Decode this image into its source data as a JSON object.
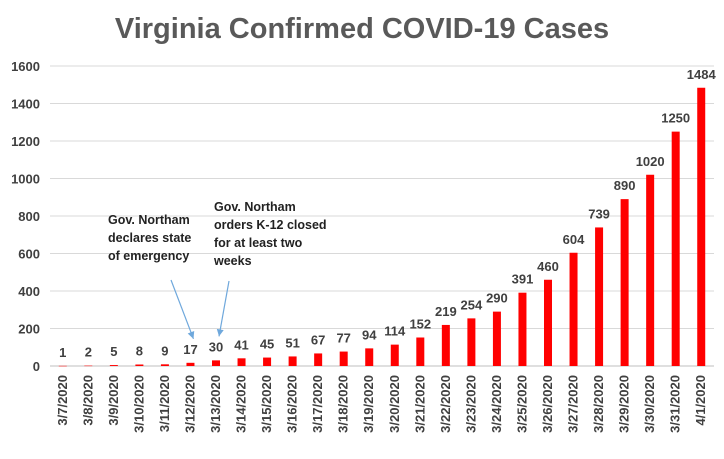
{
  "chart_data": {
    "type": "bar",
    "title": "Virginia Confirmed COVID-19 Cases",
    "xlabel": "",
    "ylabel": "",
    "ylim": [
      0,
      1600
    ],
    "yticks": [
      0,
      200,
      400,
      600,
      800,
      1000,
      1200,
      1400,
      1600
    ],
    "grid": true,
    "legend": "none",
    "bar_color": "#ff0000",
    "categories": [
      "3/7/2020",
      "3/8/2020",
      "3/9/2020",
      "3/10/2020",
      "3/11/2020",
      "3/12/2020",
      "3/13/2020",
      "3/14/2020",
      "3/15/2020",
      "3/16/2020",
      "3/17/2020",
      "3/18/2020",
      "3/19/2020",
      "3/20/2020",
      "3/21/2020",
      "3/22/2020",
      "3/23/2020",
      "3/24/2020",
      "3/25/2020",
      "3/26/2020",
      "3/27/2020",
      "3/28/2020",
      "3/29/2020",
      "3/30/2020",
      "3/31/2020",
      "4/1/2020"
    ],
    "values": [
      1,
      2,
      5,
      8,
      9,
      17,
      30,
      41,
      45,
      51,
      67,
      77,
      94,
      114,
      152,
      219,
      254,
      290,
      391,
      460,
      604,
      739,
      890,
      1020,
      1250,
      1484
    ],
    "annotations": [
      {
        "lines": [
          "Gov. Northam",
          "declares state",
          "of emergency"
        ],
        "points_to": "3/12/2020"
      },
      {
        "lines": [
          "Gov. Northam",
          "orders K-12 closed",
          "for at least two",
          "weeks"
        ],
        "points_to": "3/13/2020"
      }
    ]
  }
}
